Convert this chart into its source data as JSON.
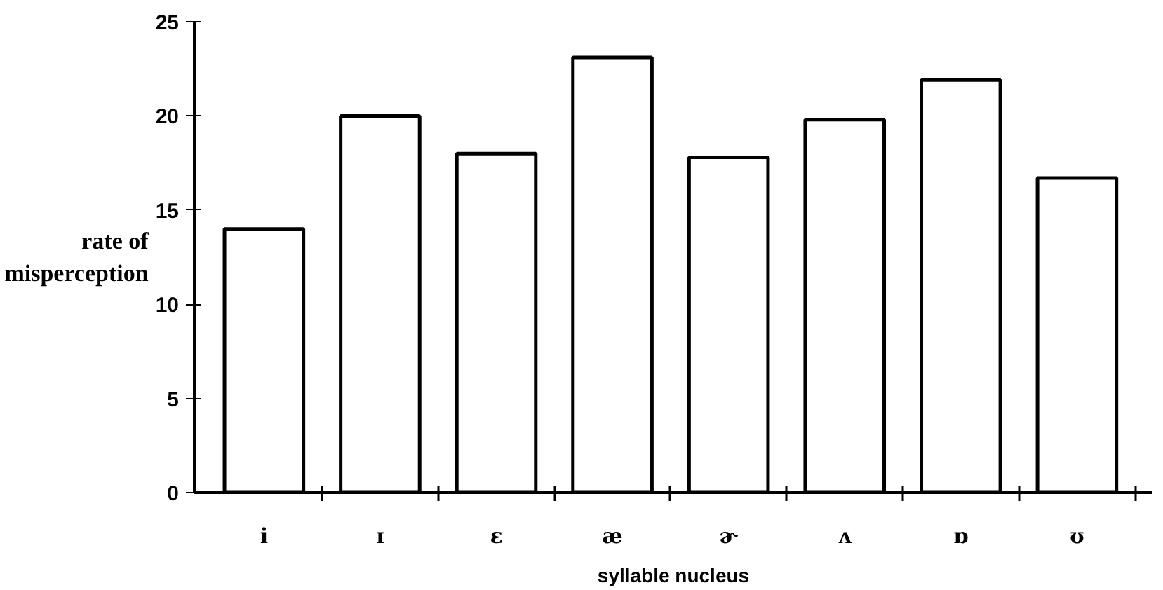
{
  "chart_data": {
    "type": "bar",
    "xlabel": "syllable nucleus",
    "ylabel": "rate of\nmisperception",
    "categories": [
      "i",
      "ɪ",
      "ɛ",
      "æ",
      "ɚ",
      "ʌ",
      "ɒ",
      "ʊ"
    ],
    "values": [
      14,
      20,
      18,
      23.1,
      17.8,
      19.8,
      21.9,
      16.7
    ],
    "color": "#ffffff",
    "ylim": [
      0,
      25
    ],
    "yticks": [
      0,
      5,
      10,
      15,
      20,
      25
    ],
    "grid": false
  }
}
